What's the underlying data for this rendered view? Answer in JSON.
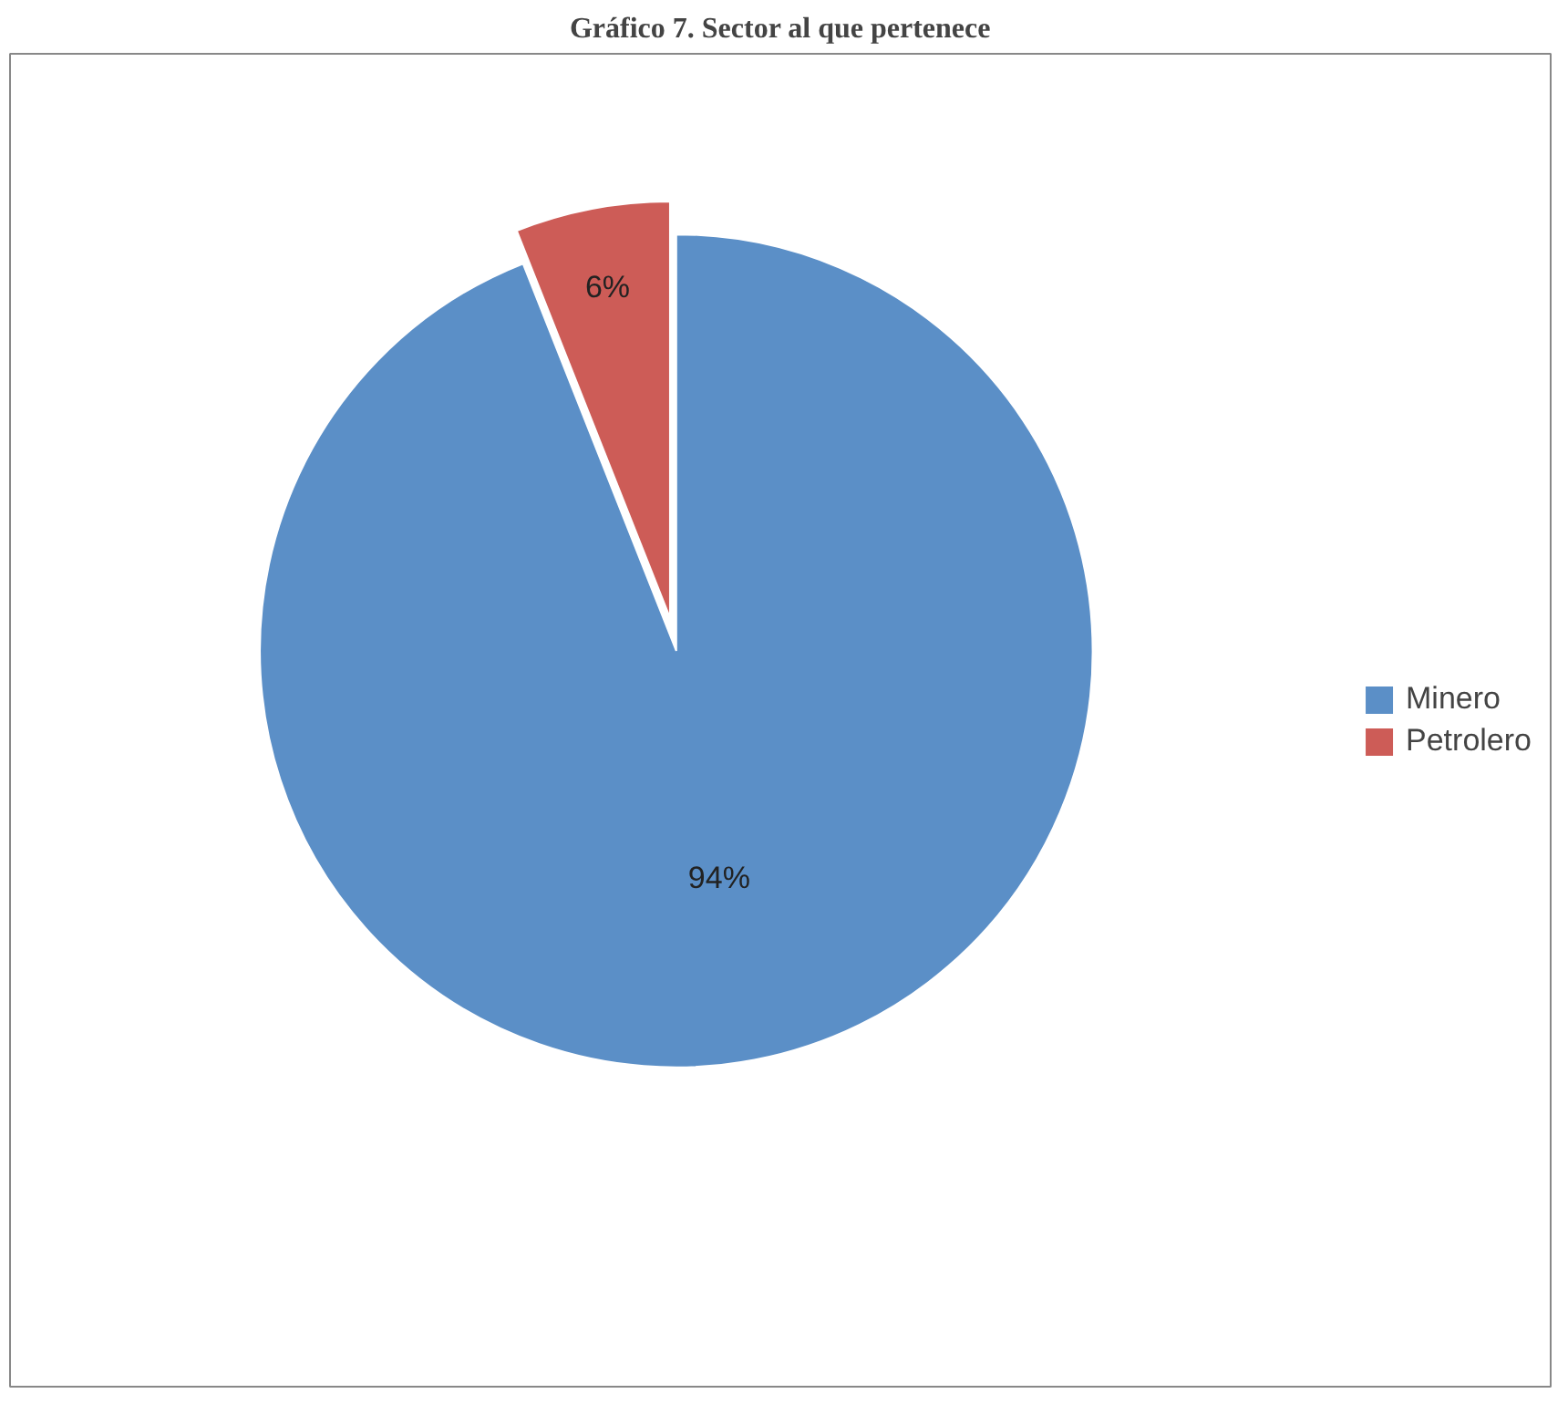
{
  "chart_data": {
    "type": "pie",
    "title": "Gráfico 7. Sector al que pertenece",
    "categories": [
      "Minero",
      "Petrolero"
    ],
    "values": [
      94,
      6
    ],
    "colors": [
      "#5b8fc7",
      "#cd5c57"
    ],
    "value_labels": [
      "94%",
      "6%"
    ],
    "legend": "right"
  }
}
